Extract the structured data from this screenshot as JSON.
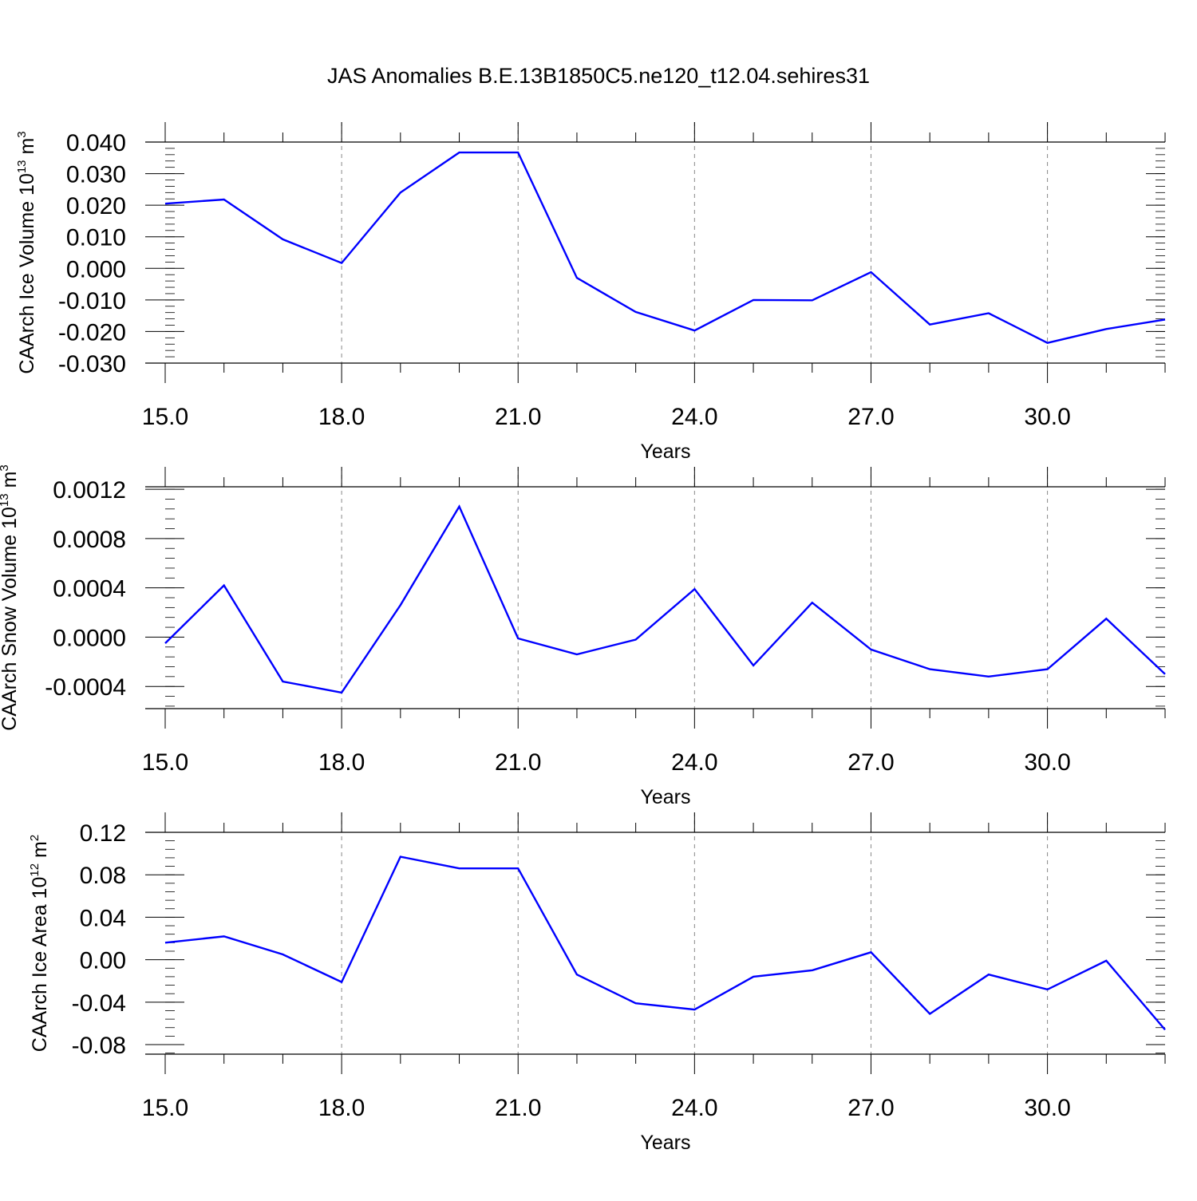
{
  "figure": {
    "title": "JAS Anomalies B.E.13B1850C5.ne120_t12.04.sehires31",
    "line_color": "#0000ff"
  },
  "chart_data": [
    {
      "type": "line",
      "xlabel": "Years",
      "ylabel": "CAArch Ice Volume 10",
      "ylabel_exp": "13",
      "ylabel_unit": " m",
      "ylabel_unit_exp": "3",
      "xlim": [
        15,
        32
      ],
      "ylim": [
        -0.03,
        0.04
      ],
      "xticks": [
        15,
        18,
        21,
        24,
        27,
        30
      ],
      "xtick_labels": [
        "15.0",
        "18.0",
        "21.0",
        "24.0",
        "27.0",
        "30.0"
      ],
      "yticks": [
        -0.03,
        -0.02,
        -0.01,
        0.0,
        0.01,
        0.02,
        0.03,
        0.04
      ],
      "ytick_labels": [
        "-0.030",
        "-0.020",
        "-0.010",
        "0.000",
        "0.010",
        "0.020",
        "0.030",
        "0.040"
      ],
      "x": [
        15,
        16,
        17,
        18,
        19,
        20,
        21,
        22,
        23,
        24,
        25,
        26,
        27,
        28,
        29,
        30,
        31,
        32
      ],
      "y": [
        0.0205,
        0.0218,
        0.0092,
        0.0017,
        0.024,
        0.0367,
        0.0367,
        -0.003,
        -0.0138,
        -0.0197,
        -0.01,
        -0.0101,
        -0.0012,
        -0.0178,
        -0.0142,
        -0.0236,
        -0.0192,
        -0.0162
      ]
    },
    {
      "type": "line",
      "xlabel": "Years",
      "ylabel": "CAArch Snow Volume 10",
      "ylabel_exp": "13",
      "ylabel_unit": " m",
      "ylabel_unit_exp": "3",
      "xlim": [
        15,
        32
      ],
      "ylim": [
        -0.00058,
        0.00122
      ],
      "xticks": [
        15,
        18,
        21,
        24,
        27,
        30
      ],
      "xtick_labels": [
        "15.0",
        "18.0",
        "21.0",
        "24.0",
        "27.0",
        "30.0"
      ],
      "yticks": [
        -0.0004,
        0.0,
        0.0004,
        0.0008,
        0.0012
      ],
      "ytick_labels": [
        "-0.0004",
        "0.0000",
        "0.0004",
        "0.0008",
        "0.0012"
      ],
      "x": [
        15,
        16,
        17,
        18,
        19,
        20,
        21,
        22,
        23,
        24,
        25,
        26,
        27,
        28,
        29,
        30,
        31,
        32
      ],
      "y": [
        -5e-05,
        0.00042,
        -0.00036,
        -0.00045,
        0.00026,
        0.00106,
        -1e-05,
        -0.00014,
        -2e-05,
        0.00039,
        -0.00023,
        0.00028,
        -0.0001,
        -0.00026,
        -0.00032,
        -0.00026,
        0.00015,
        -0.0003
      ]
    },
    {
      "type": "line",
      "xlabel": "Years",
      "ylabel": "CAArch Ice Area 10",
      "ylabel_exp": "12",
      "ylabel_unit": " m",
      "ylabel_unit_exp": "2",
      "xlim": [
        15,
        32
      ],
      "ylim": [
        -0.089,
        0.12
      ],
      "xticks": [
        15,
        18,
        21,
        24,
        27,
        30
      ],
      "xtick_labels": [
        "15.0",
        "18.0",
        "21.0",
        "24.0",
        "27.0",
        "30.0"
      ],
      "yticks": [
        -0.08,
        -0.04,
        0.0,
        0.04,
        0.08,
        0.12
      ],
      "ytick_labels": [
        "-0.08",
        "-0.04",
        "0.00",
        "0.04",
        "0.08",
        "0.12"
      ],
      "x": [
        15,
        16,
        17,
        18,
        19,
        20,
        21,
        22,
        23,
        24,
        25,
        26,
        27,
        28,
        29,
        30,
        31,
        32
      ],
      "y": [
        0.016,
        0.022,
        0.005,
        -0.021,
        0.097,
        0.086,
        0.086,
        -0.014,
        -0.041,
        -0.047,
        -0.016,
        -0.01,
        0.007,
        -0.051,
        -0.014,
        -0.028,
        -0.001,
        -0.066
      ]
    }
  ]
}
